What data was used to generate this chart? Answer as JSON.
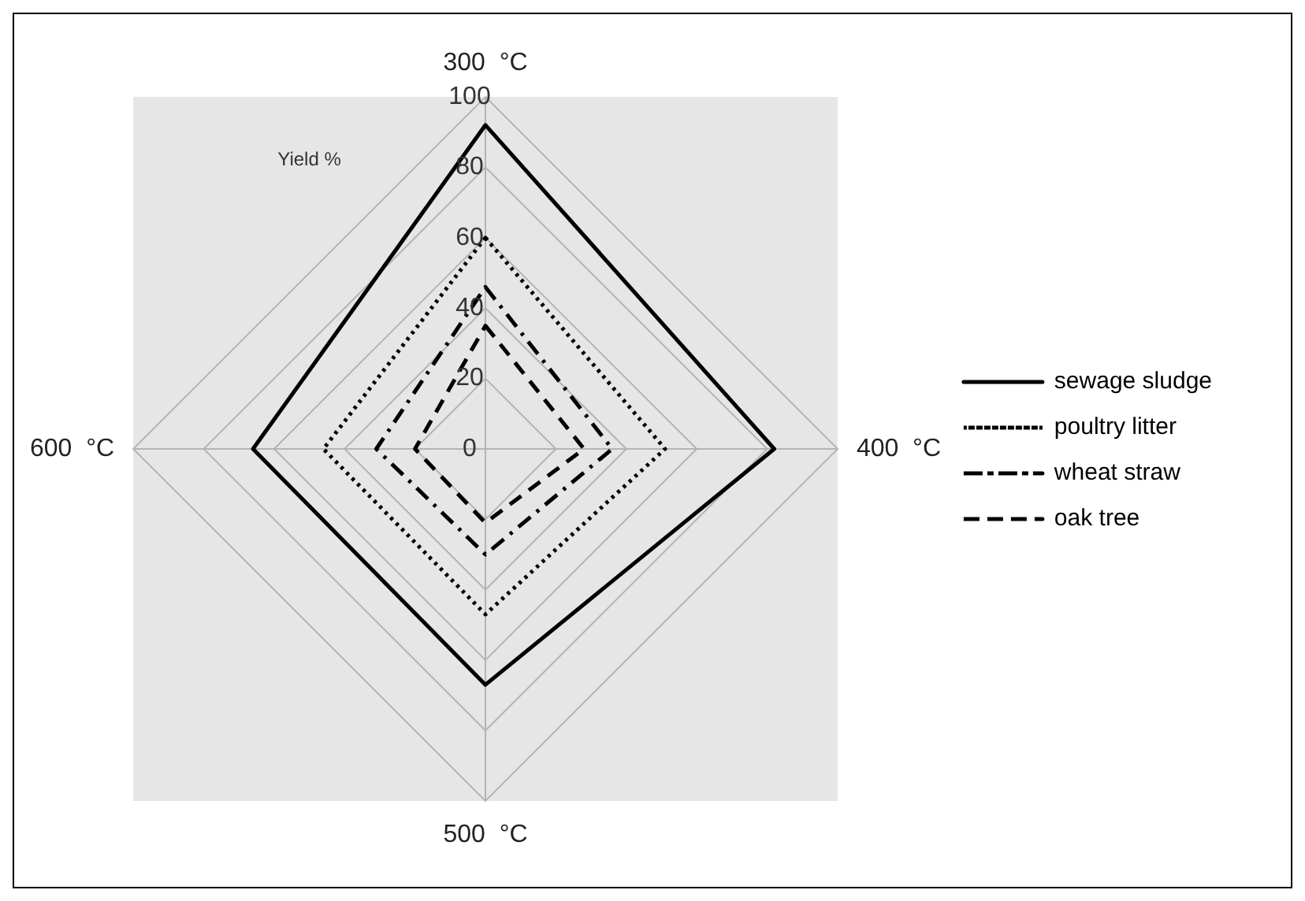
{
  "chart_data": {
    "type": "radar",
    "ylabel": "Yield %",
    "categories": [
      "300  °C",
      "400  °C",
      "500  °C",
      "600  °C"
    ],
    "ylim": [
      0,
      100
    ],
    "yticks": [
      0,
      20,
      40,
      60,
      80,
      100
    ],
    "grid": true,
    "legend": "right",
    "marker": "none",
    "series": [
      {
        "name": "sewage sludge",
        "color": "#000000",
        "line_style": "solid",
        "values": [
          92,
          82,
          67,
          66
        ]
      },
      {
        "name": "poultry litter",
        "color": "#000000",
        "line_style": "dotted",
        "values": [
          60,
          51,
          47,
          46
        ]
      },
      {
        "name": "wheat straw",
        "color": "#000000",
        "line_style": "dashdot",
        "values": [
          46,
          36,
          30,
          31
        ]
      },
      {
        "name": "oak tree",
        "color": "#000000",
        "line_style": "dashed",
        "values": [
          35,
          28,
          21,
          20
        ]
      }
    ]
  }
}
